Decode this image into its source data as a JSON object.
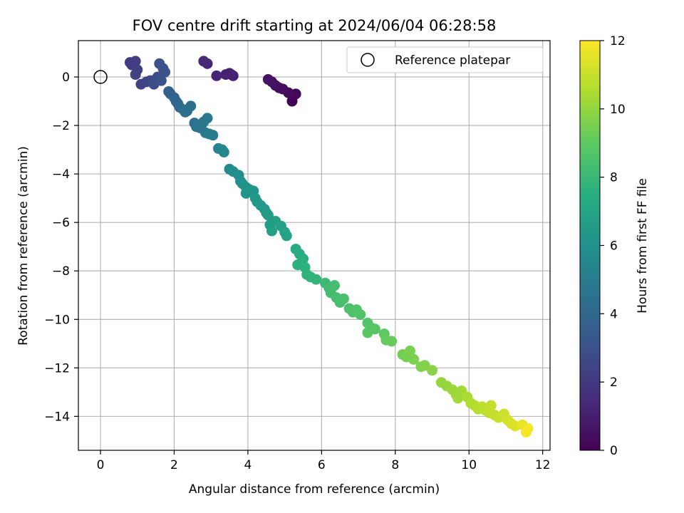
{
  "chart_data": {
    "type": "scatter",
    "title": "FOV centre drift starting at 2024/06/04 06:28:58",
    "xlabel": "Angular distance from reference (arcmin)",
    "ylabel": "Rotation from reference (arcmin)",
    "xlim": [
      -0.6,
      12.2
    ],
    "ylim": [
      -15.4,
      1.5
    ],
    "x_ticks": [
      0,
      2,
      4,
      6,
      8,
      10,
      12
    ],
    "y_ticks": [
      0,
      -2,
      -4,
      -6,
      -8,
      -10,
      -12,
      -14
    ],
    "grid": true,
    "legend": {
      "position": "top-right",
      "entries": [
        "Reference platepar"
      ]
    },
    "reference_point": {
      "x": 0,
      "y": 0
    },
    "colorbar": {
      "label": "Hours from first FF file",
      "min": 0,
      "max": 12,
      "ticks": [
        0,
        2,
        4,
        6,
        8,
        10,
        12
      ],
      "colormap": "viridis"
    },
    "points": [
      [
        5.2,
        -1.0,
        0.0
      ],
      [
        5.25,
        -0.75,
        0.1
      ],
      [
        5.3,
        -0.7,
        0.2
      ],
      [
        5.1,
        -0.65,
        0.3
      ],
      [
        4.95,
        -0.5,
        0.4
      ],
      [
        4.85,
        -0.45,
        0.45
      ],
      [
        4.75,
        -0.35,
        0.5
      ],
      [
        4.65,
        -0.2,
        0.55
      ],
      [
        4.55,
        -0.1,
        0.6
      ],
      [
        3.6,
        0.05,
        1.0
      ],
      [
        3.5,
        0.15,
        1.05
      ],
      [
        3.4,
        0.1,
        1.1
      ],
      [
        3.55,
        0.1,
        1.15
      ],
      [
        3.15,
        0.05,
        1.2
      ],
      [
        2.9,
        0.55,
        1.3
      ],
      [
        2.8,
        0.65,
        1.35
      ],
      [
        0.85,
        0.5,
        2.0
      ],
      [
        0.8,
        0.6,
        2.05
      ],
      [
        0.95,
        0.65,
        2.1
      ],
      [
        0.9,
        0.55,
        2.15
      ],
      [
        1.0,
        0.3,
        2.2
      ],
      [
        0.95,
        0.1,
        2.3
      ],
      [
        1.1,
        -0.3,
        2.4
      ],
      [
        1.25,
        -0.2,
        2.5
      ],
      [
        1.35,
        -0.15,
        2.6
      ],
      [
        1.5,
        -0.1,
        2.7
      ],
      [
        1.45,
        -0.3,
        2.8
      ],
      [
        1.55,
        0.0,
        2.85
      ],
      [
        1.6,
        0.55,
        2.9
      ],
      [
        1.7,
        0.35,
        3.0
      ],
      [
        1.75,
        0.2,
        3.05
      ],
      [
        1.65,
        -0.15,
        3.1
      ],
      [
        1.85,
        -0.6,
        3.6
      ],
      [
        1.9,
        -0.7,
        3.7
      ],
      [
        2.0,
        -0.85,
        3.8
      ],
      [
        2.05,
        -1.0,
        3.9
      ],
      [
        2.1,
        -1.1,
        4.0
      ],
      [
        2.15,
        -1.25,
        4.1
      ],
      [
        2.25,
        -1.35,
        4.2
      ],
      [
        2.3,
        -1.45,
        4.3
      ],
      [
        2.35,
        -1.4,
        4.35
      ],
      [
        2.45,
        -1.2,
        4.4
      ],
      [
        2.55,
        -1.9,
        4.5
      ],
      [
        2.6,
        -2.05,
        4.6
      ],
      [
        2.7,
        -2.1,
        4.65
      ],
      [
        2.75,
        -1.95,
        4.7
      ],
      [
        2.8,
        -1.85,
        4.75
      ],
      [
        2.9,
        -1.7,
        4.8
      ],
      [
        2.85,
        -2.3,
        4.9
      ],
      [
        2.95,
        -2.35,
        4.95
      ],
      [
        3.05,
        -2.4,
        5.0
      ],
      [
        3.2,
        -2.95,
        5.3
      ],
      [
        3.3,
        -3.0,
        5.4
      ],
      [
        3.35,
        -3.1,
        5.5
      ],
      [
        3.5,
        -3.8,
        5.7
      ],
      [
        3.6,
        -3.9,
        5.8
      ],
      [
        3.75,
        -4.05,
        5.9
      ],
      [
        3.8,
        -4.3,
        6.0
      ],
      [
        3.85,
        -4.4,
        6.05
      ],
      [
        3.95,
        -4.55,
        6.1
      ],
      [
        3.95,
        -4.8,
        6.15
      ],
      [
        4.05,
        -4.65,
        6.2
      ],
      [
        4.15,
        -4.7,
        6.25
      ],
      [
        4.2,
        -5.0,
        6.3
      ],
      [
        4.25,
        -5.15,
        6.35
      ],
      [
        4.35,
        -5.3,
        6.4
      ],
      [
        4.45,
        -5.45,
        6.45
      ],
      [
        4.5,
        -5.6,
        6.5
      ],
      [
        4.55,
        -5.7,
        6.55
      ],
      [
        4.6,
        -6.1,
        6.6
      ],
      [
        4.65,
        -6.35,
        6.65
      ],
      [
        4.75,
        -5.95,
        6.7
      ],
      [
        4.9,
        -6.15,
        6.8
      ],
      [
        5.0,
        -6.4,
        6.85
      ],
      [
        5.05,
        -6.55,
        6.9
      ],
      [
        5.3,
        -7.1,
        7.3
      ],
      [
        5.4,
        -7.3,
        7.4
      ],
      [
        5.5,
        -7.5,
        7.5
      ],
      [
        5.45,
        -7.65,
        7.55
      ],
      [
        5.35,
        -7.75,
        7.6
      ],
      [
        5.55,
        -7.85,
        7.65
      ],
      [
        5.6,
        -8.15,
        7.7
      ],
      [
        5.7,
        -8.25,
        7.75
      ],
      [
        5.85,
        -8.35,
        7.8
      ],
      [
        6.1,
        -8.5,
        8.1
      ],
      [
        6.2,
        -8.7,
        8.2
      ],
      [
        6.25,
        -8.9,
        8.25
      ],
      [
        6.35,
        -8.6,
        8.3
      ],
      [
        6.4,
        -9.1,
        8.35
      ],
      [
        6.5,
        -9.3,
        8.4
      ],
      [
        6.6,
        -9.15,
        8.45
      ],
      [
        6.75,
        -9.55,
        8.5
      ],
      [
        6.85,
        -9.7,
        8.55
      ],
      [
        6.95,
        -9.6,
        8.6
      ],
      [
        7.05,
        -9.8,
        8.65
      ],
      [
        7.25,
        -10.15,
        8.7
      ],
      [
        7.35,
        -10.35,
        8.75
      ],
      [
        7.45,
        -10.4,
        8.8
      ],
      [
        7.25,
        -10.55,
        8.85
      ],
      [
        7.7,
        -10.6,
        9.0
      ],
      [
        7.75,
        -10.85,
        9.1
      ],
      [
        7.9,
        -10.9,
        9.15
      ],
      [
        8.2,
        -11.45,
        9.4
      ],
      [
        8.3,
        -11.55,
        9.45
      ],
      [
        8.4,
        -11.3,
        9.5
      ],
      [
        8.5,
        -11.65,
        9.55
      ],
      [
        8.7,
        -11.95,
        9.65
      ],
      [
        8.8,
        -11.9,
        9.7
      ],
      [
        9.0,
        -12.1,
        9.8
      ],
      [
        9.25,
        -12.6,
        10.0
      ],
      [
        9.4,
        -12.75,
        10.05
      ],
      [
        9.55,
        -12.9,
        10.15
      ],
      [
        9.65,
        -13.1,
        10.2
      ],
      [
        9.7,
        -13.25,
        10.25
      ],
      [
        9.8,
        -12.95,
        10.3
      ],
      [
        9.95,
        -13.2,
        10.4
      ],
      [
        10.05,
        -13.45,
        10.5
      ],
      [
        10.15,
        -13.55,
        10.6
      ],
      [
        10.25,
        -13.7,
        10.7
      ],
      [
        10.35,
        -13.6,
        10.75
      ],
      [
        10.45,
        -13.75,
        10.8
      ],
      [
        10.55,
        -13.85,
        10.85
      ],
      [
        10.6,
        -13.55,
        10.9
      ],
      [
        10.7,
        -13.95,
        10.95
      ],
      [
        10.8,
        -14.05,
        11.0
      ],
      [
        10.95,
        -13.9,
        11.1
      ],
      [
        11.05,
        -14.15,
        11.2
      ],
      [
        11.15,
        -14.3,
        11.3
      ],
      [
        11.25,
        -14.4,
        11.4
      ],
      [
        11.45,
        -14.35,
        11.6
      ],
      [
        11.6,
        -14.5,
        11.8
      ],
      [
        11.55,
        -14.65,
        11.9
      ]
    ]
  }
}
